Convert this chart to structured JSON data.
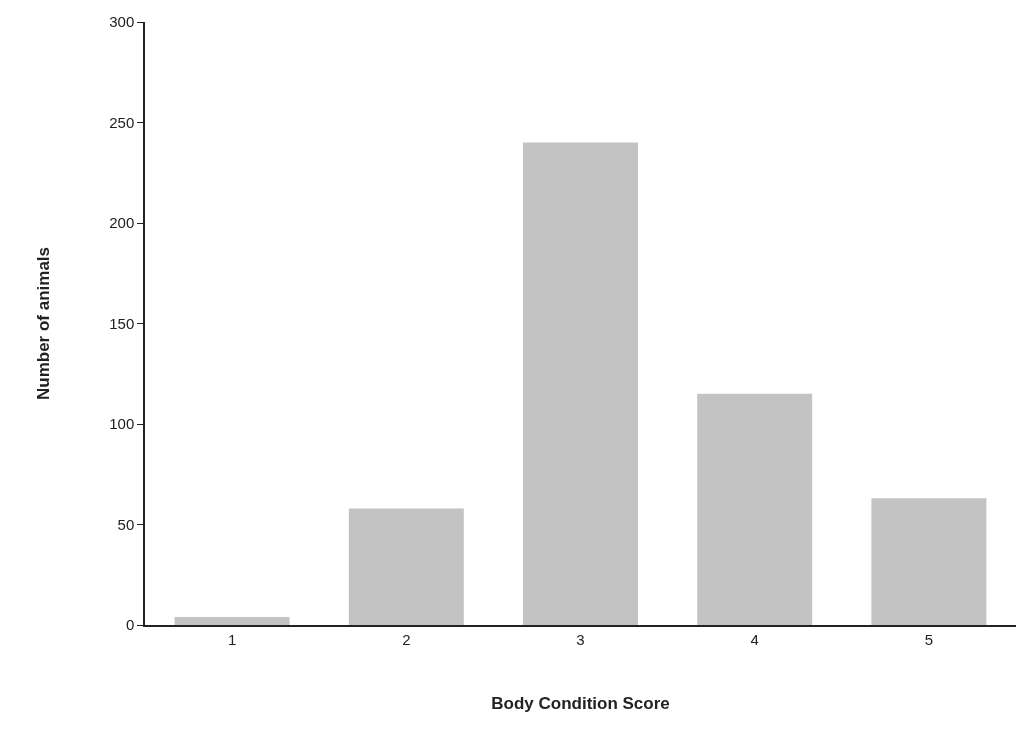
{
  "chart_data": {
    "type": "bar",
    "xlabel": "Body Condition Score",
    "ylabel": "Number of animals",
    "categories": [
      "1",
      "2",
      "3",
      "4",
      "5"
    ],
    "values": [
      4,
      58,
      240,
      115,
      63
    ],
    "color": "#c3c3c3",
    "ylim": [
      0,
      300
    ],
    "yticks": [
      0,
      50,
      100,
      150,
      200,
      250,
      300
    ]
  }
}
